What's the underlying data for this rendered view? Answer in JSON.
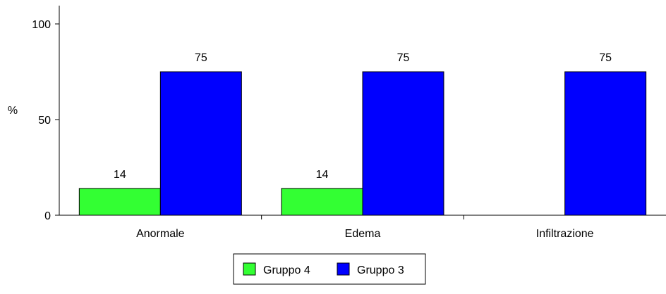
{
  "chart_data": {
    "type": "bar",
    "categories": [
      "Anormale",
      "Edema",
      "Infiltrazione"
    ],
    "series": [
      {
        "name": "Gruppo 4",
        "values": [
          14,
          14,
          null
        ],
        "color": "#33ff33"
      },
      {
        "name": "Gruppo 3",
        "values": [
          75,
          75,
          75
        ],
        "color": "#0000ff"
      }
    ],
    "data_labels": [
      {
        "series": 0,
        "category": 0,
        "text": "14"
      },
      {
        "series": 1,
        "category": 0,
        "text": "75"
      },
      {
        "series": 0,
        "category": 1,
        "text": "14"
      },
      {
        "series": 1,
        "category": 1,
        "text": "75"
      },
      {
        "series": 1,
        "category": 2,
        "text": "75"
      }
    ],
    "title": "",
    "xlabel": "",
    "ylabel": "%",
    "ylim": [
      0,
      100
    ],
    "yticks": [
      0,
      50,
      100
    ],
    "ytick_labels": [
      "0",
      "50",
      "100"
    ],
    "grid": false,
    "legend_position": "bottom-center"
  }
}
